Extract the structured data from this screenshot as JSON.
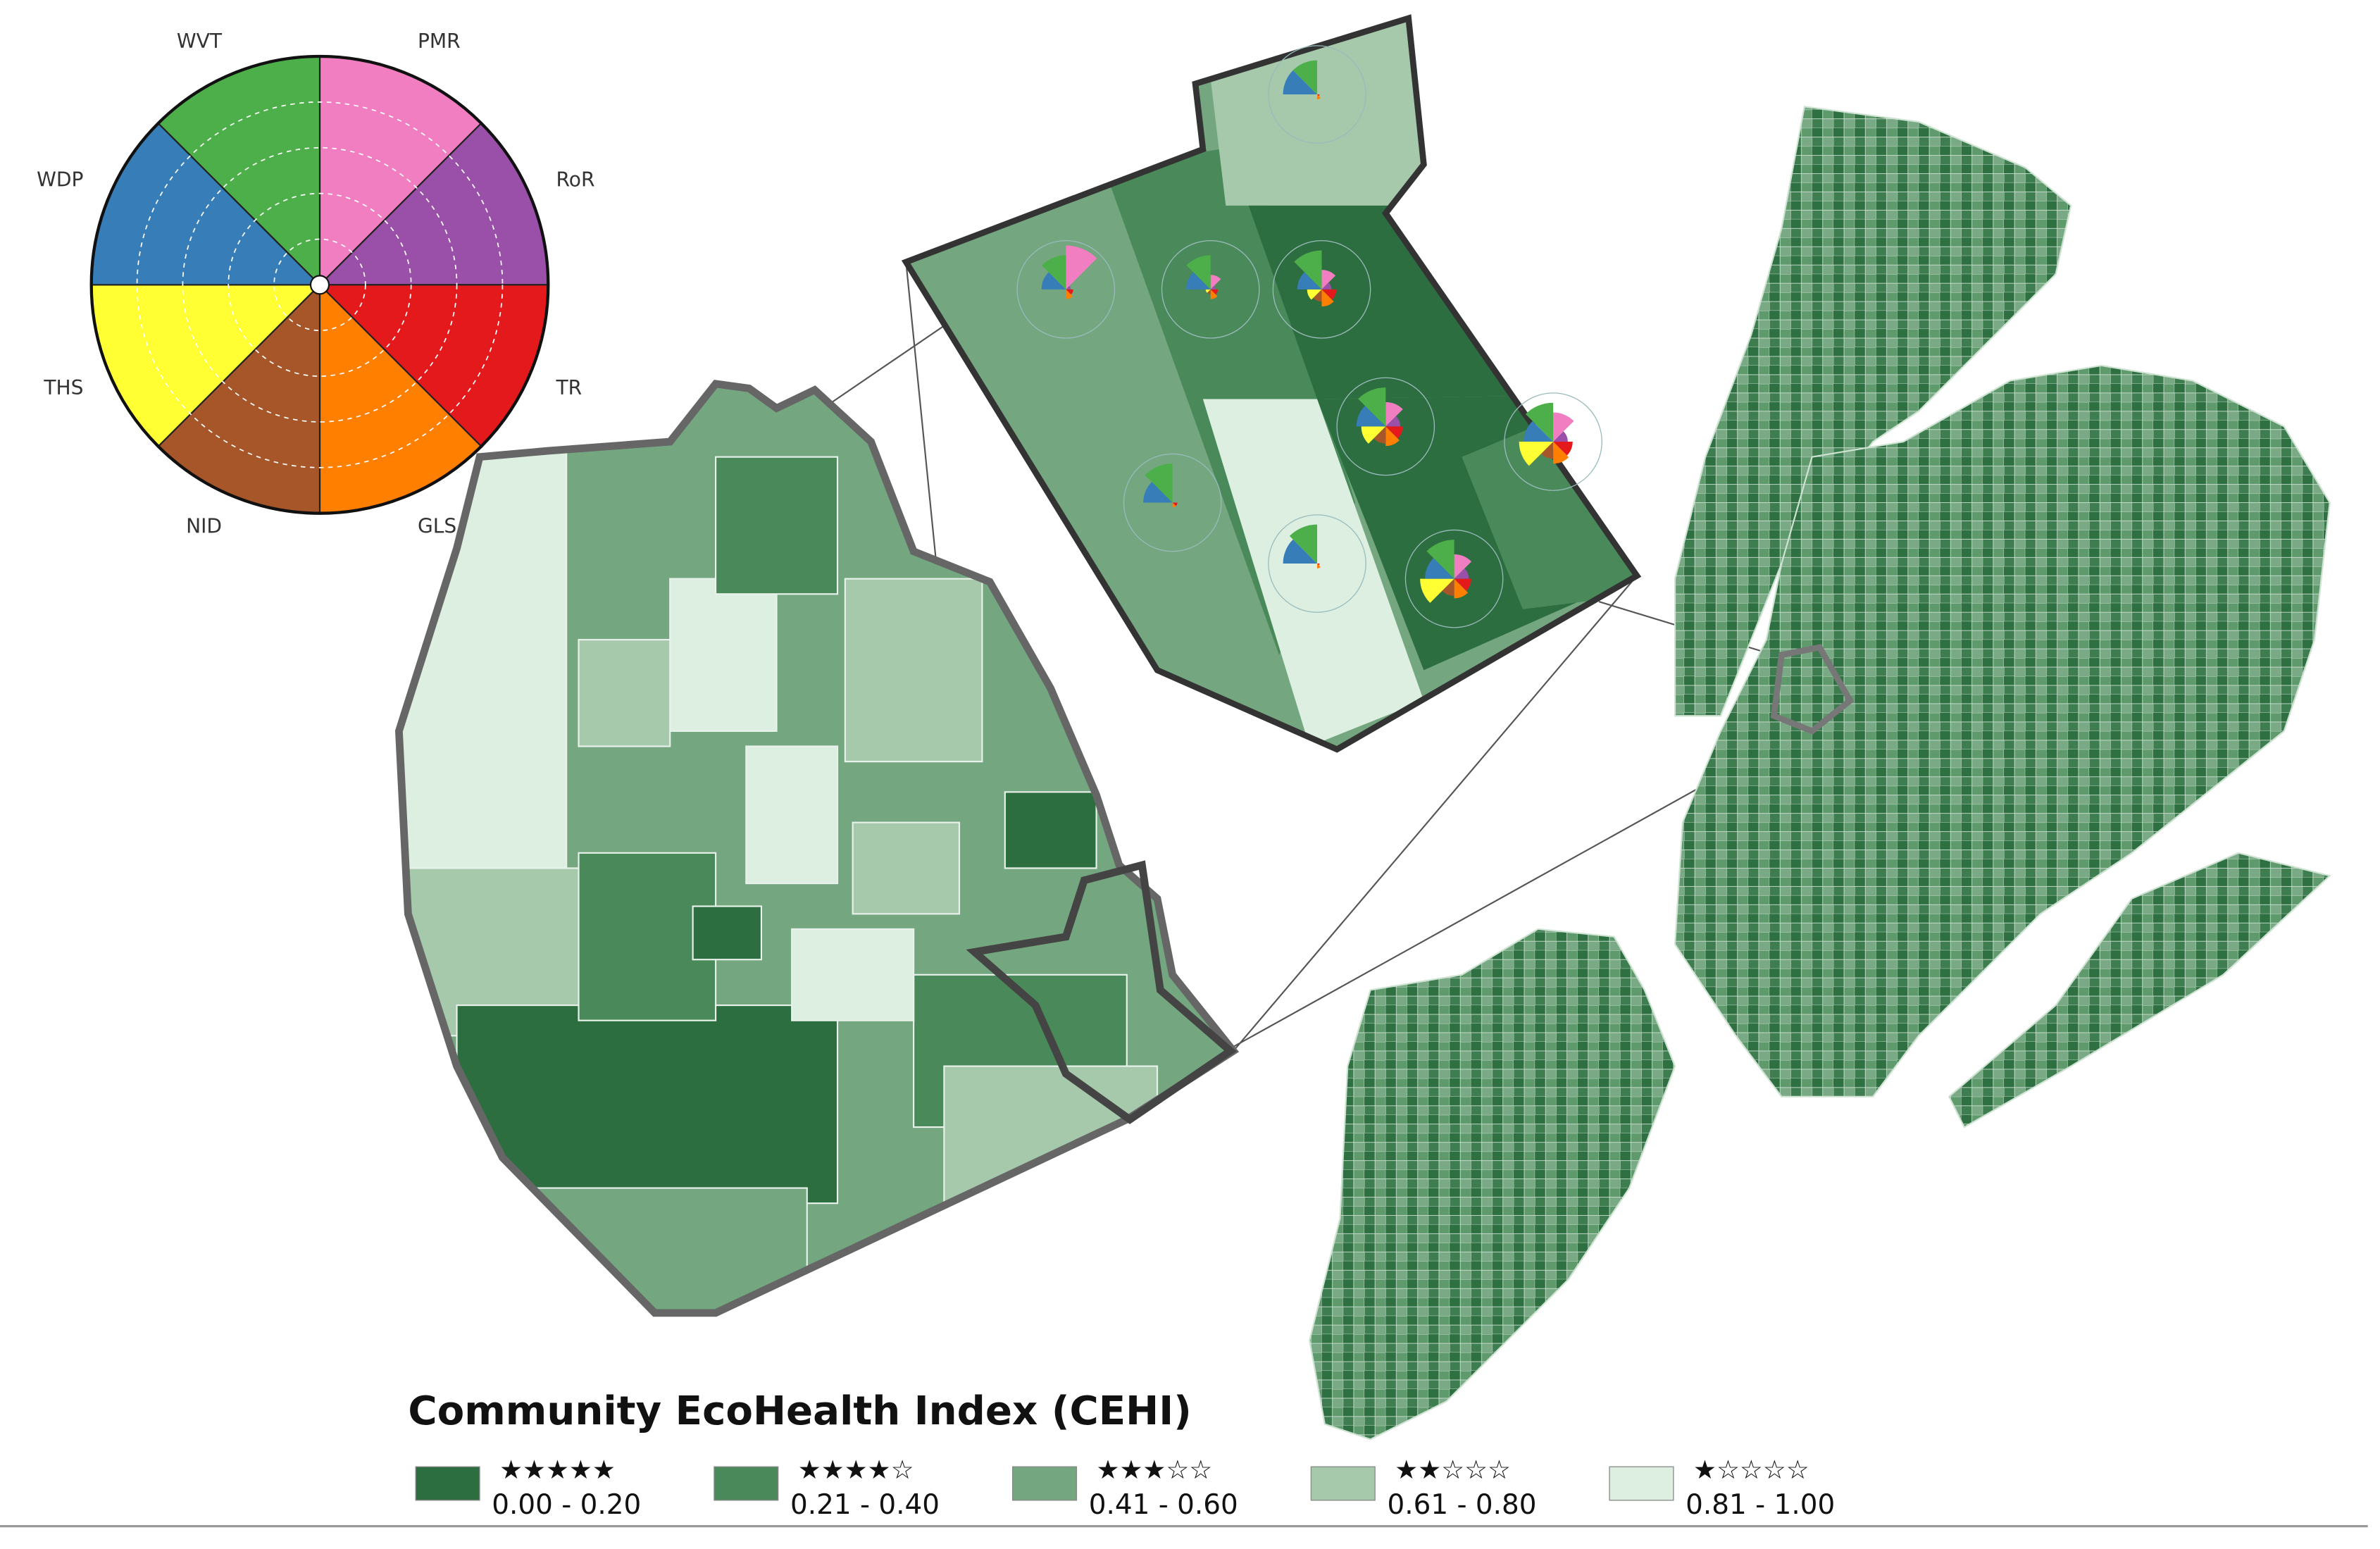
{
  "key_wheel": {
    "segments": [
      {
        "label": "PMR",
        "color": "#f07ec0"
      },
      {
        "label": "RoR",
        "color": "#9a4fa8"
      },
      {
        "label": "TR",
        "color": "#e4191c"
      },
      {
        "label": "GLS",
        "color": "#ff7f00"
      },
      {
        "label": "NID",
        "color": "#a65628"
      },
      {
        "label": "THS",
        "color": "#ffff33"
      },
      {
        "label": "WDP",
        "color": "#377eb8"
      },
      {
        "label": "WVT",
        "color": "#4daf4a"
      }
    ]
  },
  "legend": {
    "title": "Community EcoHealth Index (CEHI)",
    "items": [
      {
        "stars": "★★★★★",
        "range": "0.00 - 0.20",
        "color": "#2d6e40"
      },
      {
        "stars": "★★★★☆",
        "range": "0.21 - 0.40",
        "color": "#4a8a5a"
      },
      {
        "stars": "★★★☆☆",
        "range": "0.41 - 0.60",
        "color": "#74a680"
      },
      {
        "stars": "★★☆☆☆",
        "range": "0.61 - 0.80",
        "color": "#a6c9ab"
      },
      {
        "stars": "★☆☆☆☆",
        "range": "0.81 - 1.00",
        "color": "#dcefe1"
      }
    ]
  }
}
